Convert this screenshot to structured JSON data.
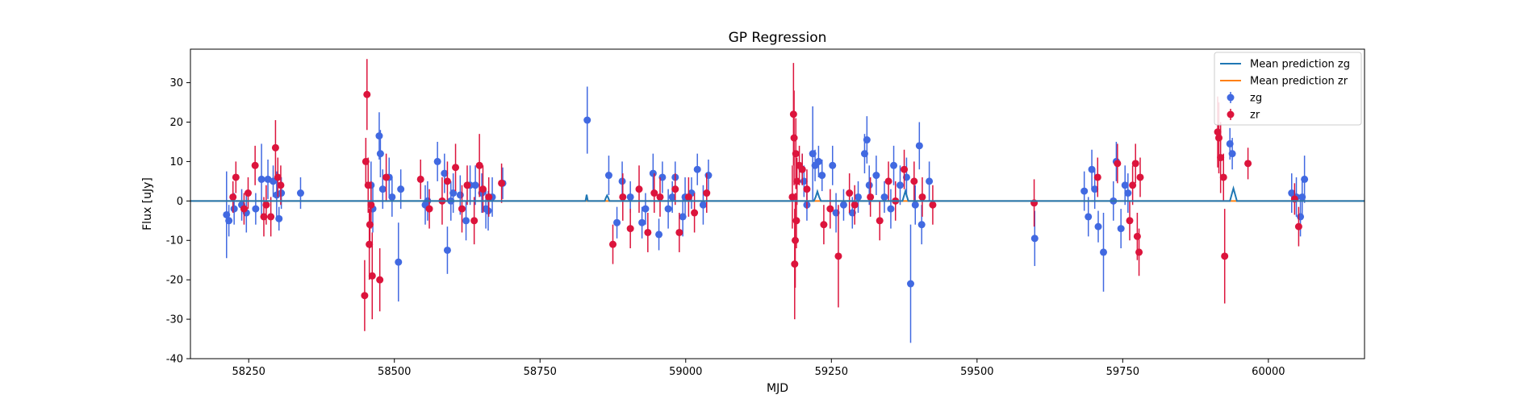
{
  "chart_data": {
    "type": "scatter",
    "title": "GP Regression",
    "xlabel": "MJD",
    "ylabel": "Flux [uJy]",
    "xlim": [
      58150,
      60165
    ],
    "ylim": [
      -40,
      38.5
    ],
    "xticks": [
      58250,
      58500,
      58750,
      59000,
      59250,
      59500,
      59750,
      60000
    ],
    "yticks": [
      -40,
      -30,
      -20,
      -10,
      0,
      10,
      20,
      30
    ],
    "grid": false,
    "legend_position": "top-right",
    "legend": [
      {
        "label": "Mean prediction zg",
        "kind": "line",
        "color": "#1f77b4"
      },
      {
        "label": "Mean prediction zr",
        "kind": "line",
        "color": "#ff7f0e"
      },
      {
        "label": "zg",
        "kind": "errorbar",
        "color": "#4169e1"
      },
      {
        "label": "zr",
        "kind": "errorbar",
        "color": "#dc143c"
      }
    ],
    "series": [
      {
        "name": "Mean prediction zg",
        "kind": "line",
        "color": "#1f77b4",
        "x": [
          58150,
          58828,
          58829,
          58830,
          58831,
          58832,
          58861,
          58863,
          58865,
          58867,
          58869,
          59220,
          59223,
          59226,
          59229,
          59232,
          59372,
          59375,
          59377,
          59379,
          59382,
          59934,
          59937,
          59940,
          59943,
          59946,
          60165
        ],
        "y": [
          0,
          0,
          0.8,
          1.6,
          0.8,
          0,
          0,
          0.8,
          1.4,
          0.8,
          0,
          0,
          1.0,
          2.4,
          1.0,
          0,
          0,
          1.5,
          2.5,
          1.5,
          0,
          0,
          1.6,
          3.2,
          1.6,
          0,
          0
        ]
      },
      {
        "name": "Mean prediction zr",
        "kind": "line",
        "color": "#ff7f0e",
        "x": [
          58150,
          60165
        ],
        "y": [
          0,
          0
        ]
      },
      {
        "name": "zg",
        "kind": "errorbar",
        "color": "#4169e1",
        "points": [
          [
            58212,
            -3.5,
            11
          ],
          [
            58216,
            -5,
            4
          ],
          [
            58225,
            -2,
            4
          ],
          [
            58238,
            -1,
            4
          ],
          [
            58246,
            -3,
            5
          ],
          [
            58262,
            -2,
            4
          ],
          [
            58272,
            5.5,
            9
          ],
          [
            58283,
            5.5,
            5
          ],
          [
            58292,
            5,
            4
          ],
          [
            58298,
            1.5,
            6
          ],
          [
            58302,
            -4.5,
            3
          ],
          [
            58306,
            2,
            4
          ],
          [
            58339,
            2,
            4
          ],
          [
            58460,
            4,
            6
          ],
          [
            58463,
            -2,
            6
          ],
          [
            58474,
            16.5,
            6
          ],
          [
            58476,
            12,
            6
          ],
          [
            58480,
            3,
            5
          ],
          [
            58491,
            6,
            5
          ],
          [
            58496,
            1,
            5
          ],
          [
            58507,
            -15.5,
            10
          ],
          [
            58511,
            3,
            5
          ],
          [
            58553,
            -1,
            5
          ],
          [
            58557,
            0,
            5
          ],
          [
            58574,
            10,
            5
          ],
          [
            58586,
            7,
            5
          ],
          [
            58591,
            -12.5,
            6
          ],
          [
            58597,
            0,
            5
          ],
          [
            58601,
            2,
            5
          ],
          [
            58613,
            1.5,
            5
          ],
          [
            58623,
            -5,
            5
          ],
          [
            58630,
            4,
            5
          ],
          [
            58639,
            4,
            5
          ],
          [
            58650,
            2,
            5
          ],
          [
            58657,
            -2,
            5
          ],
          [
            58661,
            -2.5,
            5
          ],
          [
            58668,
            1,
            5
          ],
          [
            58686,
            4.5,
            4
          ],
          [
            58831,
            20.5,
            8.5
          ],
          [
            58868,
            6.5,
            5
          ],
          [
            58882,
            -5.5,
            4
          ],
          [
            58891,
            5,
            5
          ],
          [
            58905,
            1,
            4
          ],
          [
            58925,
            -5.5,
            4
          ],
          [
            58931,
            -2,
            4
          ],
          [
            58944,
            7,
            5
          ],
          [
            58954,
            -8.5,
            4
          ],
          [
            58960,
            6,
            4
          ],
          [
            58970,
            -2,
            5
          ],
          [
            58977,
            1,
            4
          ],
          [
            58982,
            6,
            4
          ],
          [
            58995,
            -4,
            5
          ],
          [
            58999,
            1,
            5
          ],
          [
            59010,
            2,
            4
          ],
          [
            59020,
            8,
            4
          ],
          [
            59030,
            -1,
            5
          ],
          [
            59039,
            6.5,
            4
          ],
          [
            59200,
            8,
            4
          ],
          [
            59203,
            5,
            4
          ],
          [
            59208,
            -1,
            4
          ],
          [
            59218,
            12,
            12
          ],
          [
            59222,
            9,
            4
          ],
          [
            59228,
            10,
            4
          ],
          [
            59234,
            6.5,
            4
          ],
          [
            59252,
            9,
            5
          ],
          [
            59258,
            -3,
            5
          ],
          [
            59271,
            -1,
            4
          ],
          [
            59286,
            -3,
            4
          ],
          [
            59296,
            1,
            4
          ],
          [
            59307,
            12,
            5
          ],
          [
            59311,
            15.5,
            6
          ],
          [
            59315,
            4,
            5
          ],
          [
            59327,
            6.5,
            5
          ],
          [
            59341,
            1,
            4
          ],
          [
            59352,
            -2,
            5
          ],
          [
            59357,
            9,
            5
          ],
          [
            59368,
            4,
            5
          ],
          [
            59379,
            6,
            5
          ],
          [
            59386,
            -21,
            15
          ],
          [
            59394,
            -1,
            5
          ],
          [
            59401,
            14,
            6
          ],
          [
            59405,
            -6,
            5
          ],
          [
            59418,
            5,
            5
          ],
          [
            59599,
            -9.5,
            7
          ],
          [
            59684,
            2.5,
            5
          ],
          [
            59691,
            -4,
            5
          ],
          [
            59697,
            8,
            5
          ],
          [
            59702,
            3,
            5
          ],
          [
            59708,
            -6.5,
            4
          ],
          [
            59717,
            -13,
            10
          ],
          [
            59734,
            0,
            5
          ],
          [
            59739,
            10,
            5
          ],
          [
            59747,
            -7,
            5
          ],
          [
            59754,
            4,
            5
          ],
          [
            59759,
            2,
            5
          ],
          [
            59934,
            14.5,
            4
          ],
          [
            59938,
            12,
            4
          ],
          [
            60040,
            2,
            5
          ],
          [
            60048,
            1,
            5
          ],
          [
            60055,
            -4,
            5
          ],
          [
            60058,
            1,
            5
          ],
          [
            60062,
            5.5,
            6
          ]
        ]
      },
      {
        "name": "zr",
        "kind": "errorbar",
        "color": "#dc143c",
        "points": [
          [
            58223,
            1,
            4
          ],
          [
            58228,
            6,
            4
          ],
          [
            58242,
            -2,
            4
          ],
          [
            58249,
            2,
            4
          ],
          [
            58261,
            9,
            5
          ],
          [
            58276,
            -4,
            5
          ],
          [
            58280,
            -1,
            5
          ],
          [
            58288,
            -4,
            5
          ],
          [
            58296,
            13.5,
            7
          ],
          [
            58300,
            6,
            5
          ],
          [
            58305,
            4,
            5
          ],
          [
            58451,
            10,
            6
          ],
          [
            58453,
            27,
            9
          ],
          [
            58455,
            4,
            7
          ],
          [
            58457,
            -11,
            9
          ],
          [
            58458,
            -6,
            6
          ],
          [
            58460,
            -1,
            6
          ],
          [
            58449,
            -24,
            9
          ],
          [
            58462,
            -19,
            11
          ],
          [
            58475,
            -20,
            8
          ],
          [
            58486,
            6,
            6
          ],
          [
            58545,
            5.5,
            5
          ],
          [
            58560,
            -2,
            5
          ],
          [
            58582,
            0,
            6
          ],
          [
            58591,
            5,
            5
          ],
          [
            58605,
            8.5,
            6
          ],
          [
            58616,
            -2,
            6
          ],
          [
            58625,
            4,
            5
          ],
          [
            58637,
            -5,
            6
          ],
          [
            58646,
            9,
            8
          ],
          [
            58652,
            3,
            6
          ],
          [
            58662,
            1,
            5
          ],
          [
            58684,
            4.5,
            5
          ],
          [
            58875,
            -11,
            5
          ],
          [
            58892,
            1,
            6
          ],
          [
            58905,
            -7,
            5
          ],
          [
            58920,
            3,
            6
          ],
          [
            58935,
            -8,
            5
          ],
          [
            58946,
            2,
            5
          ],
          [
            58956,
            1,
            5
          ],
          [
            58982,
            3,
            4
          ],
          [
            58989,
            -8,
            5
          ],
          [
            59005,
            1,
            5
          ],
          [
            59015,
            -3,
            5
          ],
          [
            59036,
            2,
            5
          ],
          [
            59183,
            1,
            8
          ],
          [
            59185,
            22,
            13
          ],
          [
            59186,
            16,
            12
          ],
          [
            59187,
            -16,
            14
          ],
          [
            59188,
            -10,
            12
          ],
          [
            59189,
            12,
            9
          ],
          [
            59190,
            -5,
            7
          ],
          [
            59191,
            5,
            6
          ],
          [
            59195,
            9,
            5
          ],
          [
            59200,
            8,
            4
          ],
          [
            59208,
            3,
            5
          ],
          [
            59237,
            -6,
            5
          ],
          [
            59248,
            -2,
            5
          ],
          [
            59262,
            -14,
            13
          ],
          [
            59281,
            2,
            5
          ],
          [
            59290,
            -1,
            5
          ],
          [
            59317,
            1,
            5
          ],
          [
            59333,
            -5,
            5
          ],
          [
            59348,
            5,
            5
          ],
          [
            59360,
            0,
            5
          ],
          [
            59375,
            8,
            5
          ],
          [
            59392,
            5,
            5
          ],
          [
            59406,
            1,
            5
          ],
          [
            59424,
            -1,
            5
          ],
          [
            59598,
            -0.5,
            6
          ],
          [
            59707,
            6,
            5
          ],
          [
            59741,
            9.5,
            5
          ],
          [
            59762,
            -5,
            5
          ],
          [
            59767,
            4,
            5
          ],
          [
            59772,
            9.5,
            5
          ],
          [
            59775,
            -9,
            6
          ],
          [
            59778,
            -13,
            6
          ],
          [
            59780,
            6,
            5
          ],
          [
            59913,
            17.5,
            9
          ],
          [
            59915,
            16,
            9
          ],
          [
            59918,
            11,
            9
          ],
          [
            59923,
            6,
            6
          ],
          [
            59925,
            -14,
            12
          ],
          [
            59965,
            9.5,
            4
          ],
          [
            60045,
            0.5,
            4
          ],
          [
            60052,
            -6.5,
            5
          ]
        ]
      }
    ]
  }
}
